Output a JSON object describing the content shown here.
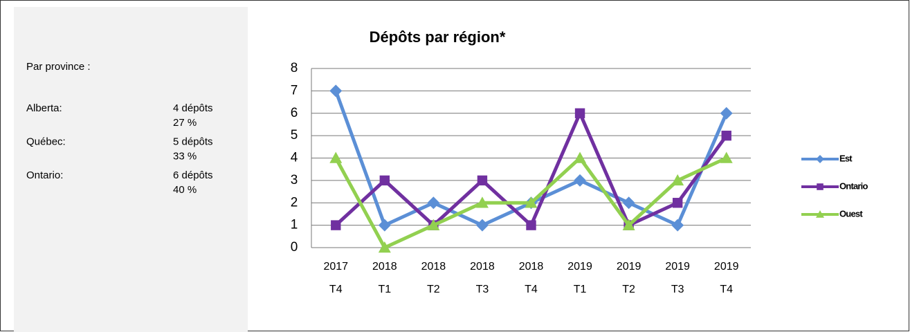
{
  "panel": {
    "title": "Par province :",
    "rows": [
      {
        "label": "Alberta:",
        "count": "4 dépôts",
        "percent": "27 %"
      },
      {
        "label": "Québec:",
        "count": "5 dépôts",
        "percent": "33 %"
      },
      {
        "label": "Ontario:",
        "count": "6 dépôts",
        "percent": "40 %"
      }
    ]
  },
  "chart_data": {
    "type": "line",
    "title": "Dépôts par région*",
    "categories": [
      "2017 T4",
      "2018 T1",
      "2018 T2",
      "2018 T3",
      "2018 T4",
      "2019 T1",
      "2019 T2",
      "2019 T3",
      "2019 T4"
    ],
    "series": [
      {
        "name": "Est",
        "color": "#5b8fd6",
        "marker": "diamond",
        "values": [
          7,
          1,
          2,
          1,
          2,
          3,
          2,
          1,
          6
        ]
      },
      {
        "name": "Ontario",
        "color": "#7030a0",
        "marker": "square",
        "values": [
          1,
          3,
          1,
          3,
          1,
          6,
          1,
          2,
          5
        ]
      },
      {
        "name": "Ouest",
        "color": "#92d050",
        "marker": "triangle",
        "values": [
          4,
          0,
          1,
          2,
          2,
          4,
          1,
          3,
          4
        ]
      }
    ],
    "ylim": [
      0,
      8
    ],
    "yticks": [
      0,
      1,
      2,
      3,
      4,
      5,
      6,
      7,
      8
    ],
    "grid": true,
    "legend": "right"
  }
}
